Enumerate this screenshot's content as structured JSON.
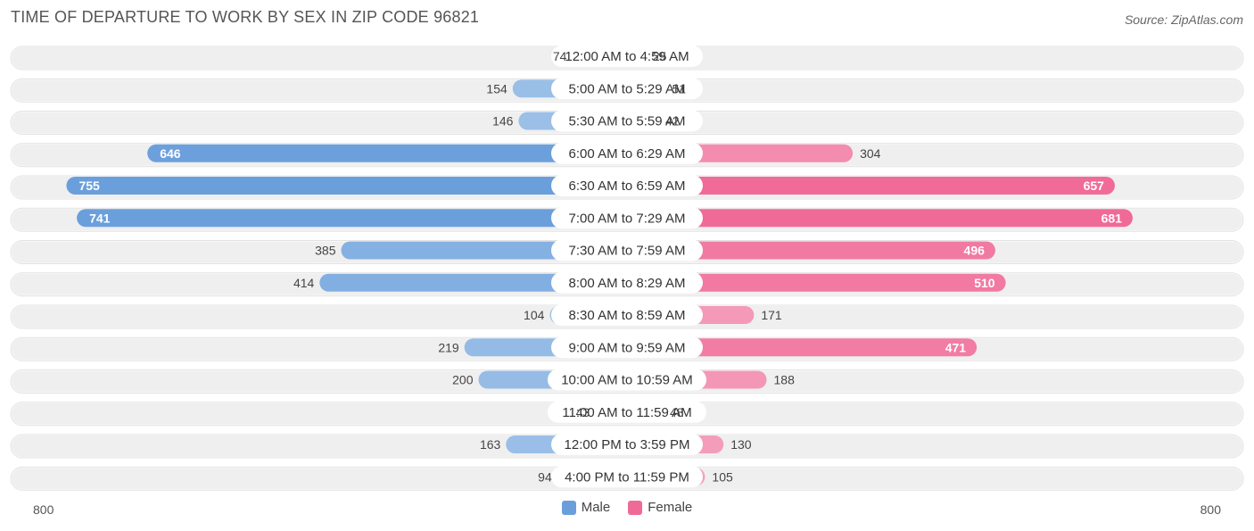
{
  "header": {
    "title": "TIME OF DEPARTURE TO WORK BY SEX IN ZIP CODE 96821",
    "source": "Source: ZipAtlas.com"
  },
  "colors": {
    "male": "#6a9fdc",
    "male_light": "#a9c8ea",
    "female": "#f06a97",
    "female_light": "#f5a9c4",
    "row_bg": "#efefef"
  },
  "legend": {
    "male_label": "Male",
    "female_label": "Female"
  },
  "axis": {
    "left_label": "800",
    "right_label": "800"
  },
  "chart_data": {
    "type": "bar",
    "orientation": "horizontal-diverging",
    "title": "TIME OF DEPARTURE TO WORK BY SEX IN ZIP CODE 96821",
    "categories": [
      "12:00 AM to 4:59 AM",
      "5:00 AM to 5:29 AM",
      "5:30 AM to 5:59 AM",
      "6:00 AM to 6:29 AM",
      "6:30 AM to 6:59 AM",
      "7:00 AM to 7:29 AM",
      "7:30 AM to 7:59 AM",
      "8:00 AM to 8:29 AM",
      "8:30 AM to 8:59 AM",
      "9:00 AM to 9:59 AM",
      "10:00 AM to 10:59 AM",
      "11:00 AM to 11:59 AM",
      "12:00 PM to 3:59 PM",
      "4:00 PM to 11:59 PM"
    ],
    "series": [
      {
        "name": "Male",
        "values": [
          74,
          154,
          146,
          646,
          755,
          741,
          385,
          414,
          104,
          219,
          200,
          43,
          163,
          94
        ]
      },
      {
        "name": "Female",
        "values": [
          25,
          51,
          42,
          304,
          657,
          681,
          496,
          510,
          171,
          471,
          188,
          48,
          130,
          105
        ]
      }
    ],
    "xlim": [
      -800,
      800
    ],
    "legend_position": "bottom-center"
  }
}
